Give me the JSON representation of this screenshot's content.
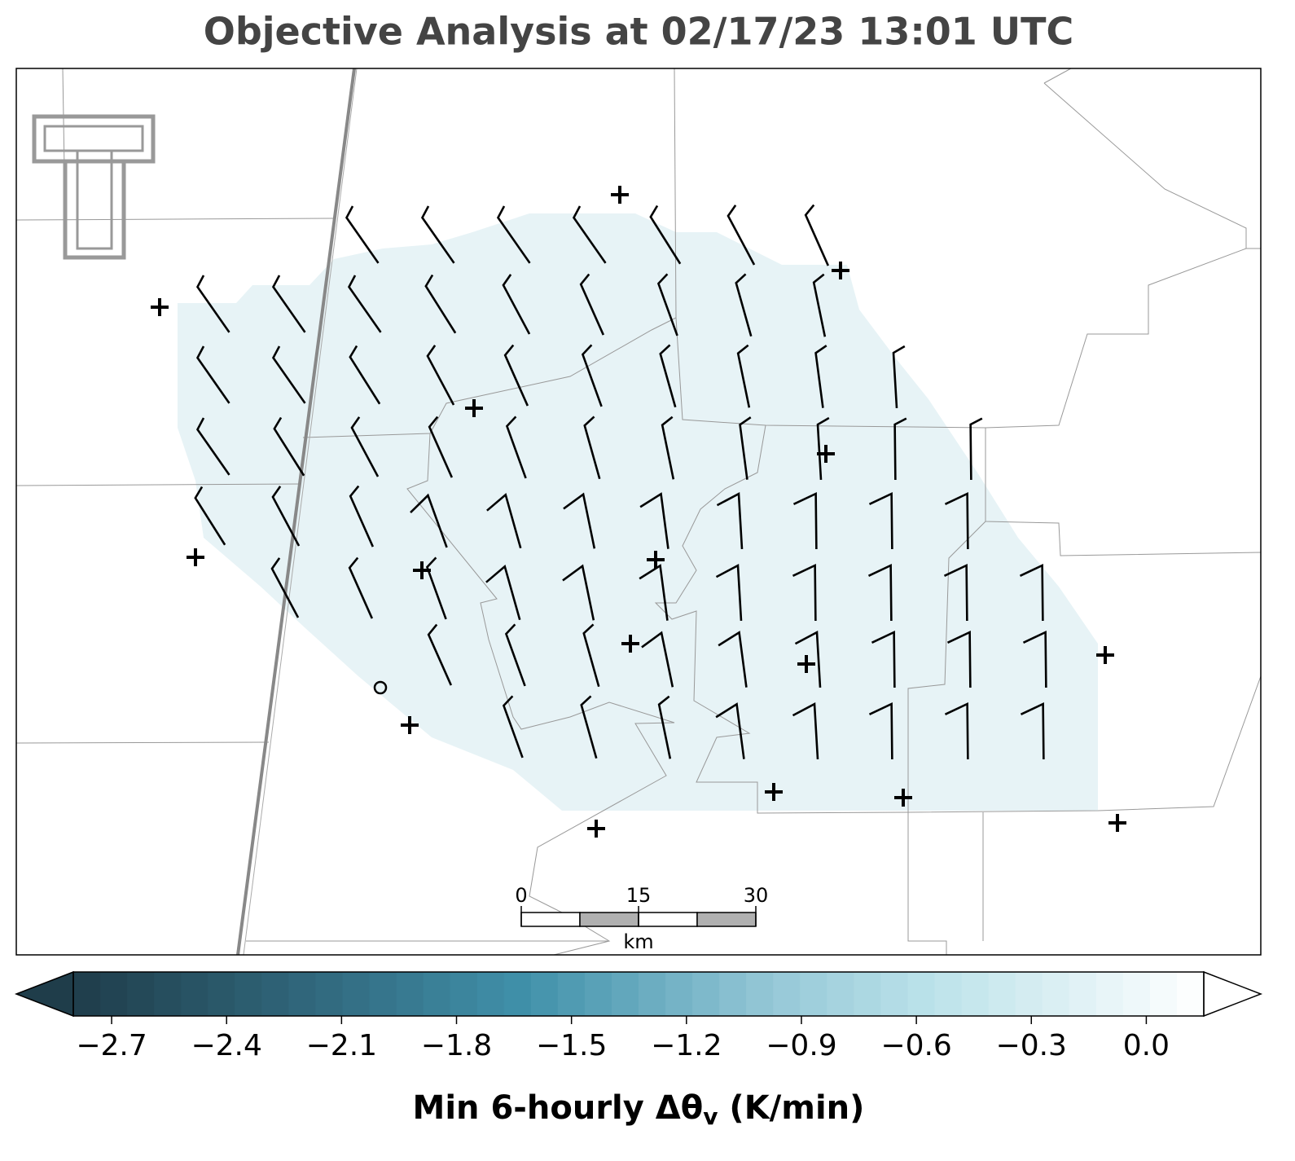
{
  "title": "Objective Analysis at 02/17/23 13:01 UTC",
  "scalebar": {
    "ticks": [
      0,
      15,
      30
    ],
    "unit": "km"
  },
  "colorbar": {
    "lim": [
      -2.8,
      0.15
    ],
    "ticks": [
      {
        "value": -2.7,
        "label": "−2.7"
      },
      {
        "value": -2.4,
        "label": "−2.4"
      },
      {
        "value": -2.1,
        "label": "−2.1"
      },
      {
        "value": -1.8,
        "label": "−1.8"
      },
      {
        "value": -1.5,
        "label": "−1.5"
      },
      {
        "value": -1.2,
        "label": "−1.2"
      },
      {
        "value": -0.9,
        "label": "−0.9"
      },
      {
        "value": -0.6,
        "label": "−0.6"
      },
      {
        "value": -0.3,
        "label": "−0.3"
      },
      {
        "value": 0,
        "label": "0.0"
      }
    ],
    "label": "Min 6-hourly Δθ",
    "label_subscript": "v",
    "label_unit": "(K/min)"
  }
}
